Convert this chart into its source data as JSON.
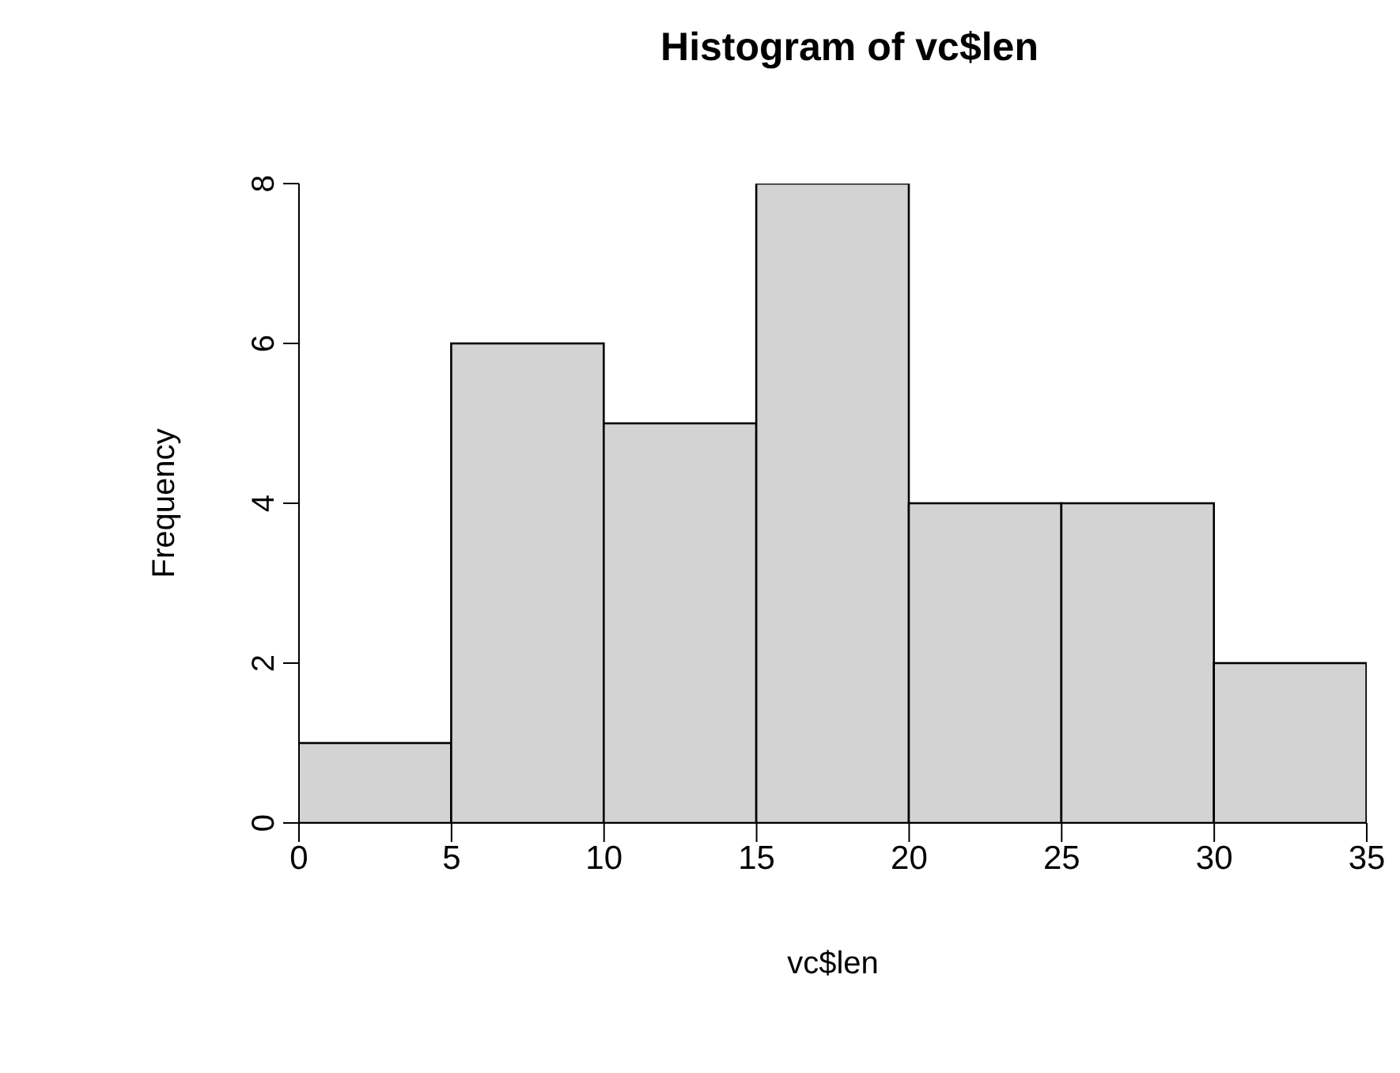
{
  "chart_data": {
    "type": "histogram",
    "title": "Histogram of vc$len",
    "xlabel": "vc$len",
    "ylabel": "Frequency",
    "bins": [
      0,
      5,
      10,
      15,
      20,
      25,
      30,
      35
    ],
    "values": [
      1,
      6,
      5,
      8,
      4,
      4,
      2
    ],
    "color": "#d3d3d3",
    "xlim": [
      0,
      35
    ],
    "xticks": [
      0,
      5,
      10,
      15,
      20,
      25,
      30,
      35
    ],
    "ylim": [
      0,
      8
    ],
    "yticks": [
      0,
      2,
      4,
      6,
      8
    ],
    "grid": false,
    "legend": false
  }
}
